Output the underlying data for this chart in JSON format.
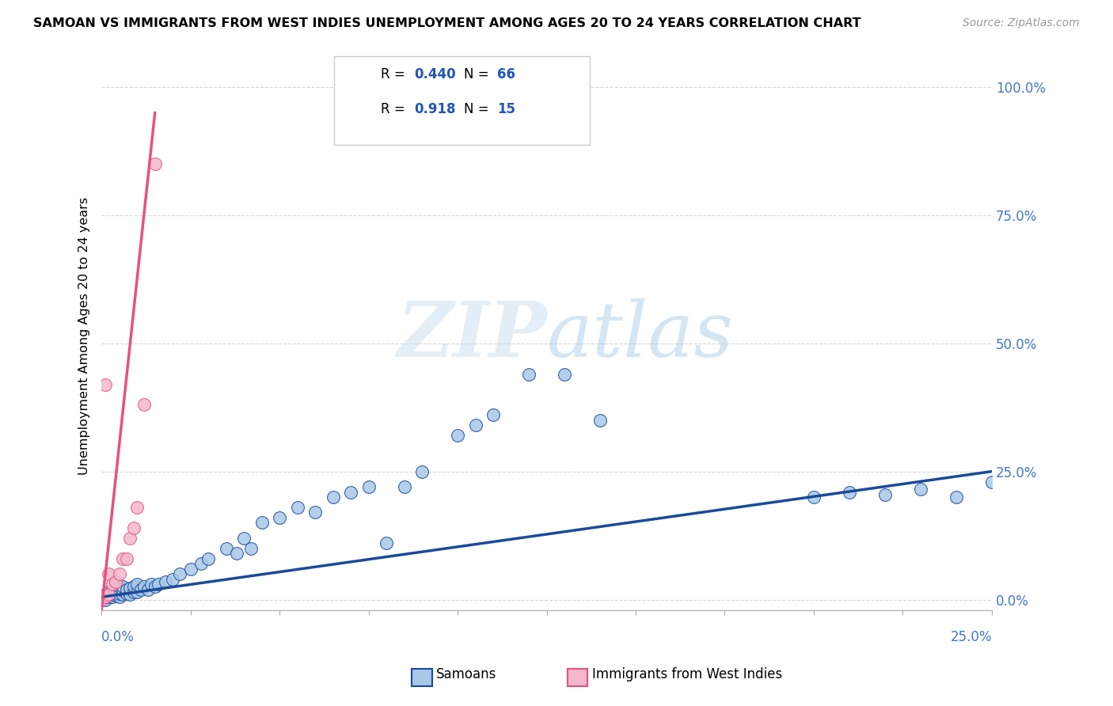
{
  "title": "SAMOAN VS IMMIGRANTS FROM WEST INDIES UNEMPLOYMENT AMONG AGES 20 TO 24 YEARS CORRELATION CHART",
  "source": "Source: ZipAtlas.com",
  "ylabel": "Unemployment Among Ages 20 to 24 years",
  "yaxis_labels": [
    "0.0%",
    "25.0%",
    "50.0%",
    "75.0%",
    "100.0%"
  ],
  "yaxis_values": [
    0.0,
    0.25,
    0.5,
    0.75,
    1.0
  ],
  "xlim": [
    0.0,
    0.25
  ],
  "ylim": [
    -0.02,
    1.05
  ],
  "color_samoans": "#a8c8e8",
  "color_west_indies": "#f4b8cc",
  "color_line_samoans": "#1a4a9a",
  "color_line_west_indies": "#e85080",
  "color_r_value": "#2255bb",
  "color_axis": "#4477cc",
  "samoans_x": [
    0.0,
    0.0,
    0.001,
    0.001,
    0.001,
    0.002,
    0.002,
    0.002,
    0.003,
    0.003,
    0.003,
    0.004,
    0.004,
    0.004,
    0.005,
    0.005,
    0.005,
    0.006,
    0.006,
    0.006,
    0.007,
    0.007,
    0.008,
    0.008,
    0.009,
    0.009,
    0.01,
    0.01,
    0.011,
    0.012,
    0.013,
    0.014,
    0.015,
    0.016,
    0.018,
    0.02,
    0.022,
    0.025,
    0.028,
    0.03,
    0.035,
    0.038,
    0.04,
    0.042,
    0.045,
    0.05,
    0.055,
    0.06,
    0.065,
    0.07,
    0.075,
    0.08,
    0.085,
    0.09,
    0.1,
    0.105,
    0.11,
    0.12,
    0.13,
    0.14,
    0.2,
    0.21,
    0.22,
    0.23,
    0.24,
    0.25
  ],
  "samoans_y": [
    0.0,
    0.005,
    0.0,
    0.005,
    0.01,
    0.005,
    0.01,
    0.015,
    0.005,
    0.01,
    0.02,
    0.008,
    0.012,
    0.02,
    0.005,
    0.012,
    0.025,
    0.01,
    0.018,
    0.025,
    0.012,
    0.02,
    0.01,
    0.022,
    0.015,
    0.025,
    0.015,
    0.03,
    0.02,
    0.025,
    0.02,
    0.03,
    0.025,
    0.03,
    0.035,
    0.04,
    0.05,
    0.06,
    0.07,
    0.08,
    0.1,
    0.09,
    0.12,
    0.1,
    0.15,
    0.16,
    0.18,
    0.17,
    0.2,
    0.21,
    0.22,
    0.11,
    0.22,
    0.25,
    0.32,
    0.34,
    0.36,
    0.44,
    0.44,
    0.35,
    0.2,
    0.21,
    0.205,
    0.215,
    0.2,
    0.23
  ],
  "west_indies_x": [
    0.0,
    0.001,
    0.001,
    0.002,
    0.002,
    0.003,
    0.004,
    0.005,
    0.006,
    0.007,
    0.008,
    0.009,
    0.01,
    0.012,
    0.015
  ],
  "west_indies_y": [
    0.0,
    0.005,
    0.42,
    0.01,
    0.05,
    0.03,
    0.035,
    0.05,
    0.08,
    0.08,
    0.12,
    0.14,
    0.18,
    0.38,
    0.85
  ],
  "samoans_line_x": [
    0.0,
    0.25
  ],
  "samoans_line_y": [
    0.005,
    0.25
  ],
  "west_indies_line_x": [
    0.0,
    0.015
  ],
  "west_indies_line_y": [
    -0.02,
    0.95
  ]
}
